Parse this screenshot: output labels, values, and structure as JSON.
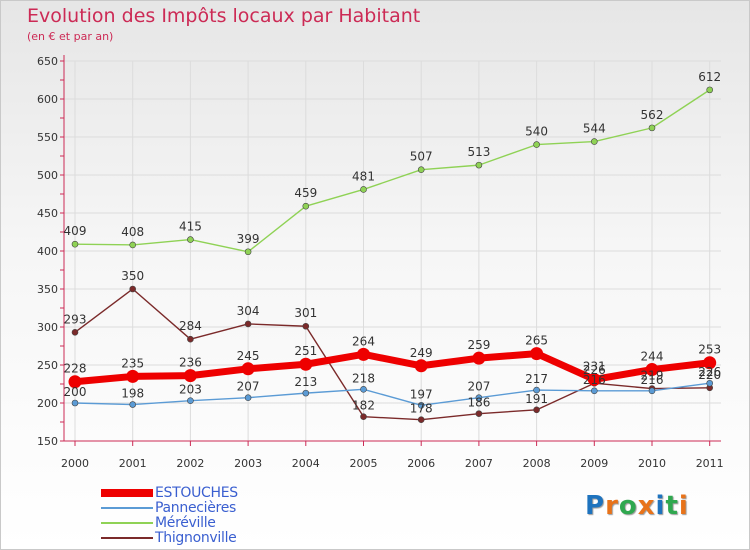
{
  "title": "Evolution des Impôts locaux par Habitant",
  "subtitle": "(en € et par an)",
  "logo": {
    "text": "Proxiti",
    "colors": [
      "#1e73be",
      "#e8731a",
      "#2fa84f",
      "#e8731a",
      "#1e73be",
      "#2fa84f",
      "#e8731a"
    ]
  },
  "chart_data": {
    "type": "line",
    "title": "Evolution des Impôts locaux par Habitant",
    "subtitle": "(en € et par an)",
    "xlabel": "",
    "ylabel": "",
    "categories": [
      "2000",
      "2001",
      "2002",
      "2003",
      "2004",
      "2005",
      "2006",
      "2007",
      "2008",
      "2009",
      "2010",
      "2011"
    ],
    "ylim": [
      150,
      650
    ],
    "yticks": [
      150,
      200,
      250,
      300,
      350,
      400,
      450,
      500,
      550,
      600,
      650
    ],
    "grid": true,
    "legend_position": "bottom-left",
    "series": [
      {
        "name": "ESTOUCHES",
        "color": "#ee0000",
        "values": [
          228,
          235,
          236,
          245,
          251,
          264,
          249,
          259,
          265,
          231,
          244,
          253
        ]
      },
      {
        "name": "Pannecières",
        "color": "#5b9bd5",
        "values": [
          200,
          198,
          203,
          207,
          213,
          218,
          197,
          207,
          217,
          216,
          216,
          226
        ]
      },
      {
        "name": "Méréville",
        "color": "#8fd255",
        "values": [
          409,
          408,
          415,
          399,
          459,
          481,
          507,
          513,
          540,
          544,
          562,
          612
        ]
      },
      {
        "name": "Thignonville",
        "color": "#7b2a2a",
        "values": [
          293,
          350,
          284,
          304,
          301,
          182,
          178,
          186,
          191,
          226,
          219,
          220
        ]
      }
    ]
  }
}
